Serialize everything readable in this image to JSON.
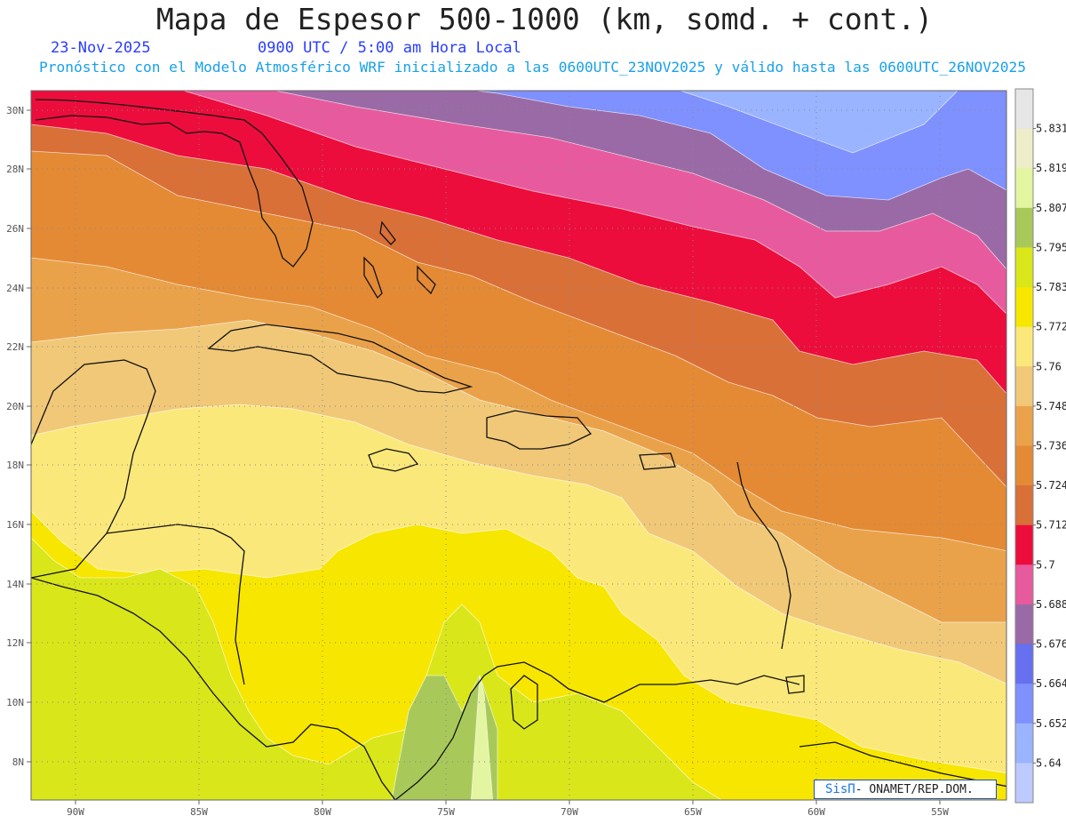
{
  "header": {
    "title": "Mapa de Espesor 500-1000 (km, somd. + cont.)",
    "date": "23-Nov-2025",
    "time": "0900 UTC / 5:00 am Hora Local",
    "description": "Pronóstico con el Modelo Atmosférico WRF inicializado a las 0600UTC_23NOV2025 y válido hasta las 0600UTC_26NOV2025"
  },
  "map": {
    "lon_labels": [
      "90W",
      "85W",
      "80W",
      "75W",
      "70W",
      "65W",
      "60W",
      "55W"
    ],
    "lat_labels": [
      "30N",
      "28N",
      "26N",
      "24N",
      "22N",
      "20N",
      "18N",
      "16N",
      "14N",
      "12N",
      "10N",
      "8N"
    ],
    "grid": "dotted"
  },
  "colorbar": {
    "levels": [
      "5.831",
      "5.819",
      "5.807",
      "5.795",
      "5.783",
      "5.772",
      "5.76",
      "5.748",
      "5.736",
      "5.724",
      "5.712",
      "5.7",
      "5.688",
      "5.676",
      "5.664",
      "5.652",
      "5.64"
    ],
    "colors": [
      "#e6e6e6",
      "#ededc9",
      "#e3f5a0",
      "#a8c95a",
      "#d9e61a",
      "#f7e600",
      "#fbe87a",
      "#f0c878",
      "#eaa24a",
      "#e48a34",
      "#d97038",
      "#ec0d3d",
      "#e85a9e",
      "#9a6aa6",
      "#6670f0",
      "#7f90ff",
      "#9ab4ff",
      "#bccaff"
    ]
  },
  "credit": {
    "logo": "SisΠ",
    "text": "- ONAMET/REP.DOM."
  }
}
